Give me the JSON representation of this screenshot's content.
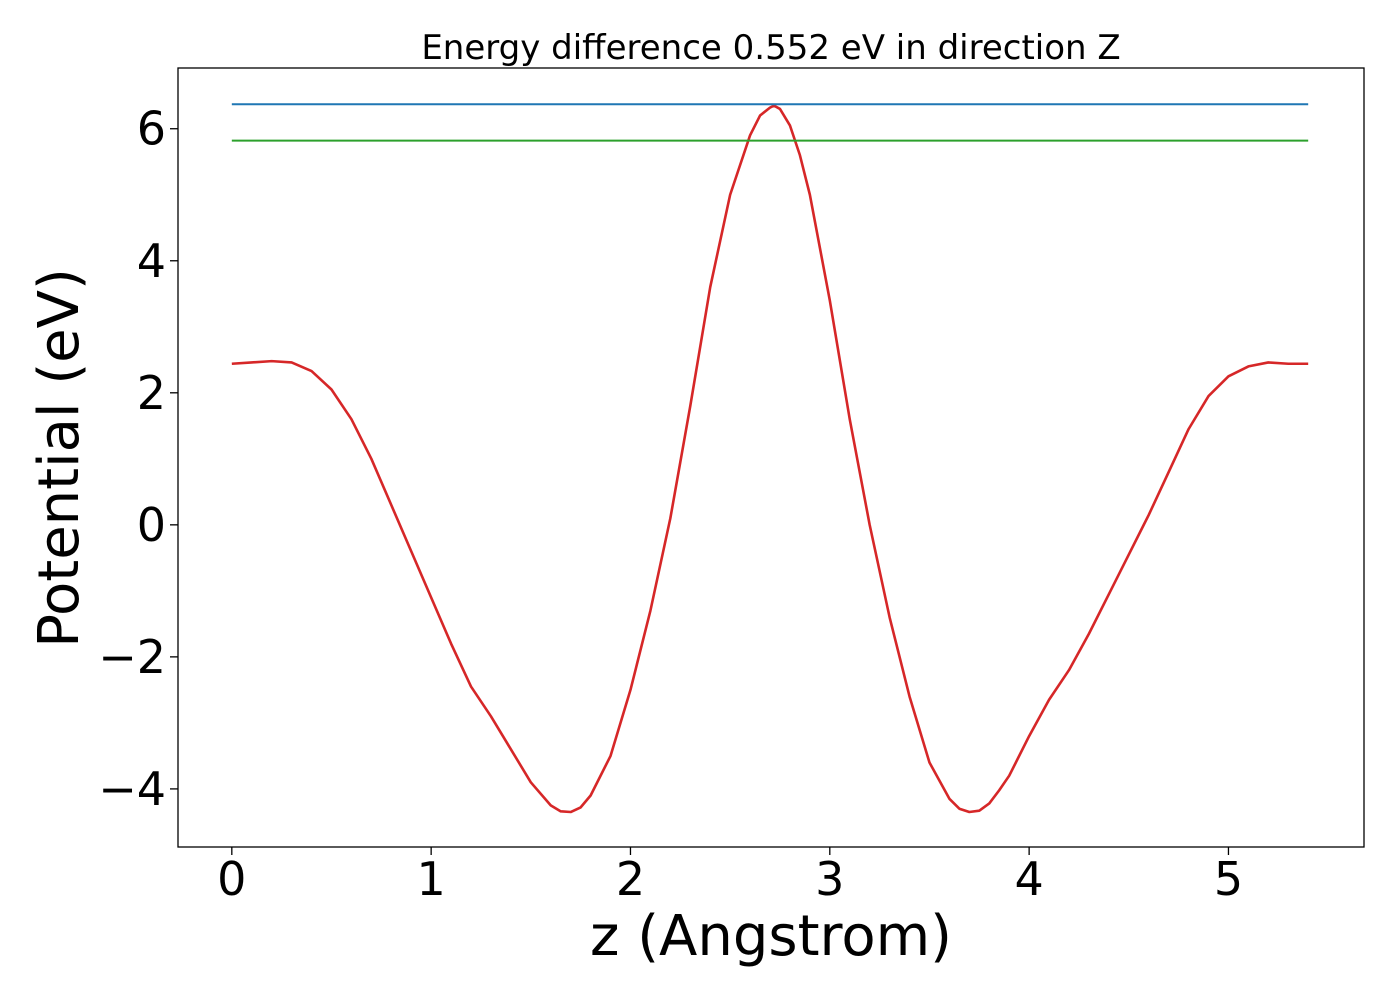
{
  "chart_data": {
    "type": "line",
    "title": "Energy difference 0.552 eV in direction Z",
    "xlabel": "z (Angstrom)",
    "ylabel": "Potential (eV)",
    "xlim": [
      -0.27,
      5.68
    ],
    "ylim": [
      -4.88,
      6.92
    ],
    "xticks": [
      0,
      1,
      2,
      3,
      4,
      5
    ],
    "yticks": [
      -4,
      -2,
      0,
      2,
      4,
      6
    ],
    "xtick_labels": [
      "0",
      "1",
      "2",
      "3",
      "4",
      "5"
    ],
    "ytick_labels": [
      "−4",
      "−2",
      "0",
      "2",
      "4",
      "6"
    ],
    "grid": false,
    "legend": "none",
    "series": [
      {
        "color": "#d62728",
        "x": [
          0.0,
          0.1,
          0.2,
          0.3,
          0.4,
          0.5,
          0.6,
          0.7,
          0.8,
          0.9,
          1.0,
          1.1,
          1.2,
          1.3,
          1.4,
          1.5,
          1.6,
          1.65,
          1.7,
          1.75,
          1.8,
          1.9,
          2.0,
          2.1,
          2.2,
          2.3,
          2.4,
          2.5,
          2.6,
          2.65,
          2.7,
          2.72,
          2.75,
          2.8,
          2.85,
          2.9,
          3.0,
          3.1,
          3.2,
          3.3,
          3.4,
          3.5,
          3.6,
          3.65,
          3.7,
          3.75,
          3.8,
          3.85,
          3.9,
          4.0,
          4.1,
          4.2,
          4.3,
          4.4,
          4.5,
          4.6,
          4.7,
          4.8,
          4.9,
          5.0,
          5.1,
          5.2,
          5.3,
          5.4
        ],
        "y": [
          2.44,
          2.46,
          2.48,
          2.46,
          2.33,
          2.05,
          1.6,
          1.0,
          0.3,
          -0.4,
          -1.1,
          -1.8,
          -2.45,
          -2.9,
          -3.4,
          -3.9,
          -4.25,
          -4.34,
          -4.35,
          -4.28,
          -4.1,
          -3.5,
          -2.5,
          -1.3,
          0.1,
          1.8,
          3.6,
          5.0,
          5.9,
          6.2,
          6.32,
          6.35,
          6.3,
          6.05,
          5.6,
          5.0,
          3.4,
          1.6,
          0.0,
          -1.4,
          -2.6,
          -3.6,
          -4.15,
          -4.3,
          -4.35,
          -4.33,
          -4.22,
          -4.02,
          -3.8,
          -3.2,
          -2.65,
          -2.2,
          -1.65,
          -1.05,
          -0.45,
          0.15,
          0.8,
          1.45,
          1.95,
          2.25,
          2.4,
          2.46,
          2.44,
          2.44
        ]
      },
      {
        "color": "#1f77b4",
        "x": [
          0.0,
          5.4
        ],
        "y": [
          6.37,
          6.37
        ]
      },
      {
        "color": "#2ca02c",
        "x": [
          0.0,
          5.4
        ],
        "y": [
          5.82,
          5.82
        ]
      }
    ]
  }
}
